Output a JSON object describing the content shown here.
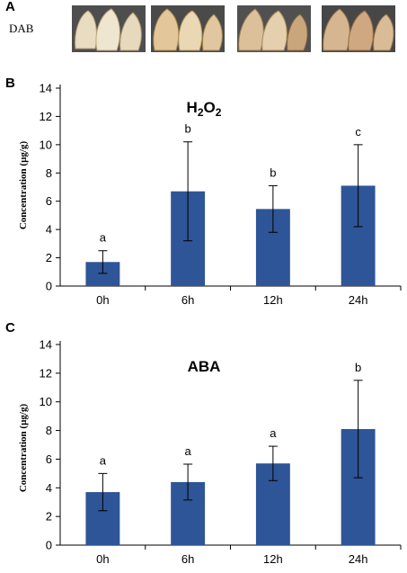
{
  "panels": {
    "a": "A",
    "b": "B",
    "c": "C"
  },
  "dab": {
    "label": "DAB",
    "image_count": 4
  },
  "chart_data": [
    {
      "type": "bar",
      "title": "H2O2",
      "ylabel": "Concentration (µg/g)",
      "xlabel": "",
      "categories": [
        "0h",
        "6h",
        "12h",
        "24h"
      ],
      "values": [
        1.7,
        6.7,
        5.45,
        7.1
      ],
      "error": [
        0.8,
        3.5,
        1.65,
        2.9
      ],
      "significance": [
        "a",
        "b",
        "b",
        "c"
      ],
      "ylim": [
        0,
        14
      ],
      "yticks": [
        0,
        2,
        4,
        6,
        8,
        10,
        12,
        14
      ],
      "bar_color": "#2e5597",
      "grid": false
    },
    {
      "type": "bar",
      "title": "ABA",
      "ylabel": "Concentration (µg/g)",
      "xlabel": "",
      "categories": [
        "0h",
        "6h",
        "12h",
        "24h"
      ],
      "values": [
        3.7,
        4.4,
        5.7,
        8.1
      ],
      "error": [
        1.3,
        1.25,
        1.2,
        3.4
      ],
      "significance": [
        "a",
        "a",
        "a",
        "b"
      ],
      "ylim": [
        0,
        14
      ],
      "yticks": [
        0,
        2,
        4,
        6,
        8,
        10,
        12,
        14
      ],
      "bar_color": "#2e5597",
      "grid": false
    }
  ]
}
